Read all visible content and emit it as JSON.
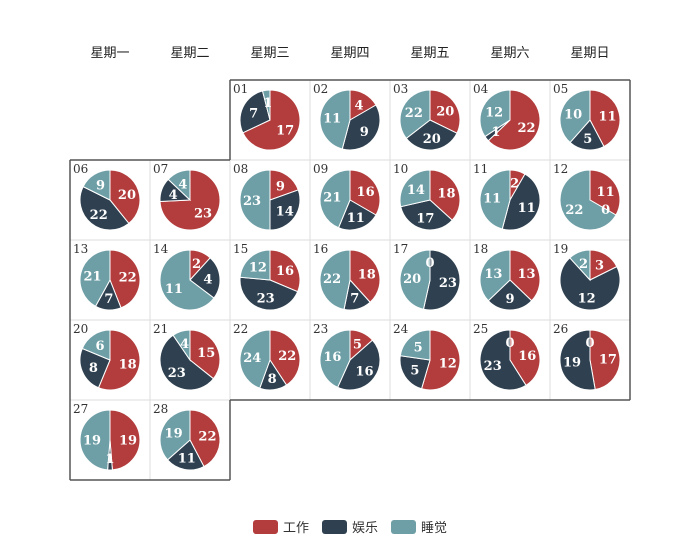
{
  "chart_data": {
    "type": "pie",
    "layout": "calendar-pie",
    "weekdays": [
      "星期一",
      "星期二",
      "星期三",
      "星期四",
      "星期五",
      "星期六",
      "星期日"
    ],
    "first_day_weekday_index": 2,
    "series": [
      {
        "name": "工作",
        "color": "#b33c3c"
      },
      {
        "name": "娱乐",
        "color": "#2f4150"
      },
      {
        "name": "睡觉",
        "color": "#6e9fa6"
      }
    ],
    "days": [
      {
        "day": "01",
        "values": [
          17,
          7,
          1
        ]
      },
      {
        "day": "02",
        "values": [
          4,
          9,
          11
        ]
      },
      {
        "day": "03",
        "values": [
          20,
          20,
          22
        ]
      },
      {
        "day": "04",
        "values": [
          22,
          1,
          12
        ]
      },
      {
        "day": "05",
        "values": [
          11,
          5,
          10
        ]
      },
      {
        "day": "06",
        "values": [
          20,
          22,
          9
        ]
      },
      {
        "day": "07",
        "values": [
          23,
          4,
          4
        ]
      },
      {
        "day": "08",
        "values": [
          9,
          14,
          23
        ]
      },
      {
        "day": "09",
        "values": [
          16,
          11,
          21
        ]
      },
      {
        "day": "10",
        "values": [
          18,
          17,
          14
        ]
      },
      {
        "day": "11",
        "values": [
          2,
          11,
          11
        ]
      },
      {
        "day": "12",
        "values": [
          11,
          0,
          22
        ]
      },
      {
        "day": "13",
        "values": [
          22,
          7,
          21
        ]
      },
      {
        "day": "14",
        "values": [
          2,
          4,
          11
        ]
      },
      {
        "day": "15",
        "values": [
          16,
          23,
          12
        ]
      },
      {
        "day": "16",
        "values": [
          18,
          7,
          22
        ]
      },
      {
        "day": "17",
        "values": [
          0,
          23,
          20
        ]
      },
      {
        "day": "18",
        "values": [
          13,
          9,
          13
        ]
      },
      {
        "day": "19",
        "values": [
          3,
          12,
          2
        ]
      },
      {
        "day": "20",
        "values": [
          18,
          8,
          6
        ]
      },
      {
        "day": "21",
        "values": [
          15,
          23,
          4
        ]
      },
      {
        "day": "22",
        "values": [
          22,
          8,
          24
        ]
      },
      {
        "day": "23",
        "values": [
          5,
          16,
          16
        ]
      },
      {
        "day": "24",
        "values": [
          12,
          5,
          5
        ]
      },
      {
        "day": "25",
        "values": [
          16,
          23,
          0
        ]
      },
      {
        "day": "26",
        "values": [
          17,
          19,
          0
        ]
      },
      {
        "day": "27",
        "values": [
          19,
          1,
          19
        ]
      },
      {
        "day": "28",
        "values": [
          22,
          11,
          19
        ]
      }
    ],
    "legend": {
      "position": "bottom-center",
      "items": [
        "工作",
        "娱乐",
        "睡觉"
      ]
    }
  }
}
